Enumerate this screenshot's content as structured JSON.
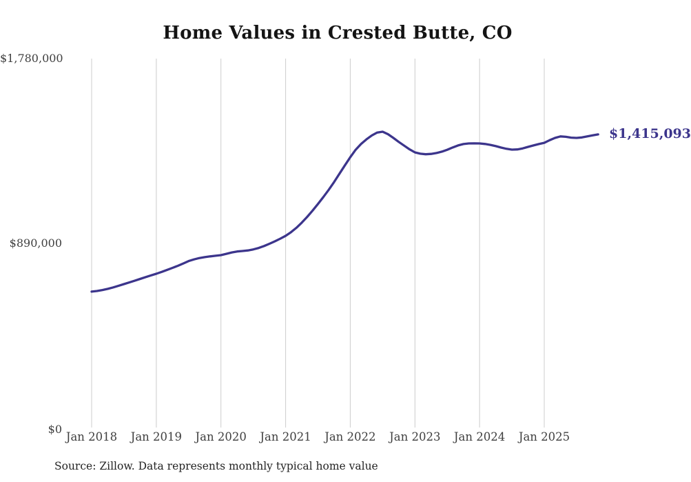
{
  "title": "Home Values in Crested Butte, CO",
  "source_note": "Source: Zillow. Data represents monthly typical home value",
  "end_label": "$1,415,093",
  "colors": {
    "line": "#3c358c",
    "grid": "#cccccc",
    "axis_text": "#3f3f3f",
    "title_text": "#141414",
    "end_label_text": "#3c358c"
  },
  "chart_data": {
    "type": "line",
    "title": "Home Values in Crested Butte, CO",
    "x_start": "2018-01",
    "x_end": "2025-11",
    "x_interval": "month",
    "x_tick_labels": [
      "Jan 2018",
      "Jan 2019",
      "Jan 2020",
      "Jan 2021",
      "Jan 2022",
      "Jan 2023",
      "Jan 2024",
      "Jan 2025"
    ],
    "y_ticks": [
      0,
      890000,
      1780000
    ],
    "y_tick_labels": [
      "$0",
      "$890,000",
      "$1,780,000"
    ],
    "ylim": [
      0,
      1780000
    ],
    "grid": "vertical-yearly-only",
    "legend": "none",
    "final_value": 1415093,
    "final_value_label": "$1,415,093",
    "series": [
      {
        "name": "Monthly typical home value",
        "values": [
          658000,
          661000,
          665500,
          671000,
          678000,
          686000,
          694000,
          702000,
          710500,
          719000,
          727500,
          736000,
          744000,
          753000,
          762500,
          772000,
          782000,
          793500,
          805000,
          813000,
          819500,
          824000,
          827500,
          830500,
          833500,
          840000,
          846500,
          851000,
          853500,
          856000,
          861000,
          868000,
          877500,
          888500,
          900000,
          912500,
          926500,
          944000,
          965000,
          990000,
          1018000,
          1048000,
          1080000,
          1113000,
          1148000,
          1186000,
          1226000,
          1266000,
          1305000,
          1341000,
          1369000,
          1391000,
          1410000,
          1424000,
          1428000,
          1416000,
          1398000,
          1379000,
          1361000,
          1343000,
          1328500,
          1322000,
          1319500,
          1321000,
          1325500,
          1332000,
          1341000,
          1352000,
          1362000,
          1368500,
          1371500,
          1372000,
          1371500,
          1369000,
          1364500,
          1358500,
          1351500,
          1345500,
          1341500,
          1342500,
          1347500,
          1355000,
          1362000,
          1368500,
          1374500,
          1387000,
          1398000,
          1405500,
          1403500,
          1399500,
          1398000,
          1400500,
          1405500,
          1410500,
          1415093
        ]
      }
    ]
  }
}
